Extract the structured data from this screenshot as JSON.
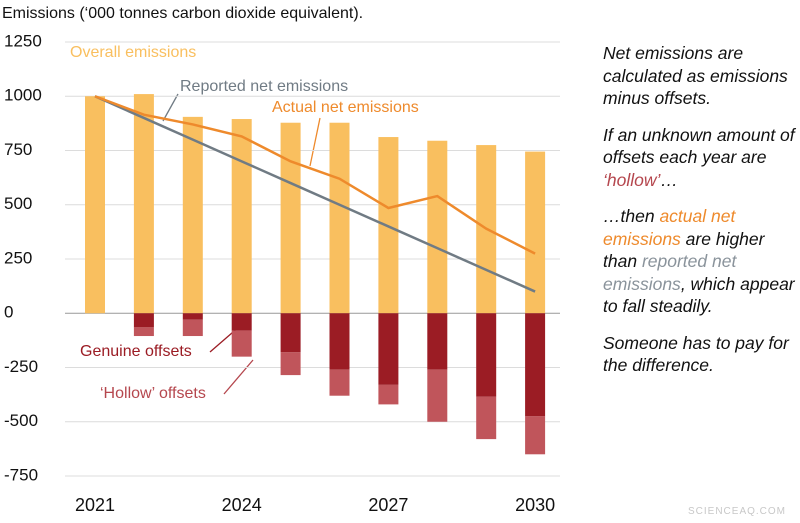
{
  "chart_data": {
    "type": "bar-line",
    "title": "Emissions (‘000 tonnes carbon dioxide equivalent).",
    "categories": [
      "2021",
      null,
      null,
      "2024",
      null,
      null,
      "2027",
      null,
      null,
      "2030"
    ],
    "series": [
      {
        "name": "Overall emissions",
        "kind": "bar",
        "color": "#f9bf5f",
        "values": [
          1000,
          1010,
          905,
          895,
          878,
          878,
          812,
          795,
          775,
          745
        ]
      },
      {
        "name": "Genuine offsets",
        "kind": "bar",
        "color": "#9b1c24",
        "values": [
          0,
          -65,
          -30,
          -80,
          -180,
          -260,
          -330,
          -260,
          -385,
          -475
        ]
      },
      {
        "name": "‘Hollow’ offsets",
        "kind": "bar",
        "color": "#c0555b",
        "values": [
          0,
          -40,
          -75,
          -120,
          -105,
          -120,
          -90,
          -240,
          -195,
          -175
        ]
      },
      {
        "name": "Reported net emissions",
        "kind": "line",
        "color": "#707b84",
        "values": [
          1000,
          900,
          800,
          700,
          600,
          500,
          400,
          300,
          200,
          100
        ]
      },
      {
        "name": "Actual net emissions",
        "kind": "line",
        "color": "#ee8a2c",
        "values": [
          1000,
          915,
          870,
          815,
          700,
          620,
          485,
          540,
          390,
          275
        ]
      }
    ],
    "ylim": [
      -750,
      1250
    ],
    "yticks": [
      -750,
      -500,
      -250,
      0,
      250,
      500,
      750,
      1000,
      1250
    ],
    "grid": true
  },
  "notes": [
    [
      {
        "text": "Net emissions are calculated as emissions minus offsets."
      }
    ],
    [
      {
        "text": "If an unknown amount of offsets each year are "
      },
      {
        "text": "‘hollow’",
        "color": "#b5474e"
      },
      {
        "text": "…"
      }
    ],
    [
      {
        "text": "…then "
      },
      {
        "text": "actual net emissions",
        "color": "#ee8a2c"
      },
      {
        "text": " are higher than "
      },
      {
        "text": "reported net emissions",
        "color": "#8a939b"
      },
      {
        "text": ", which appear to fall steadily."
      }
    ],
    [
      {
        "text": "Someone has to pay for the difference."
      }
    ]
  ],
  "watermark": "SCIENCEAQ.COM"
}
